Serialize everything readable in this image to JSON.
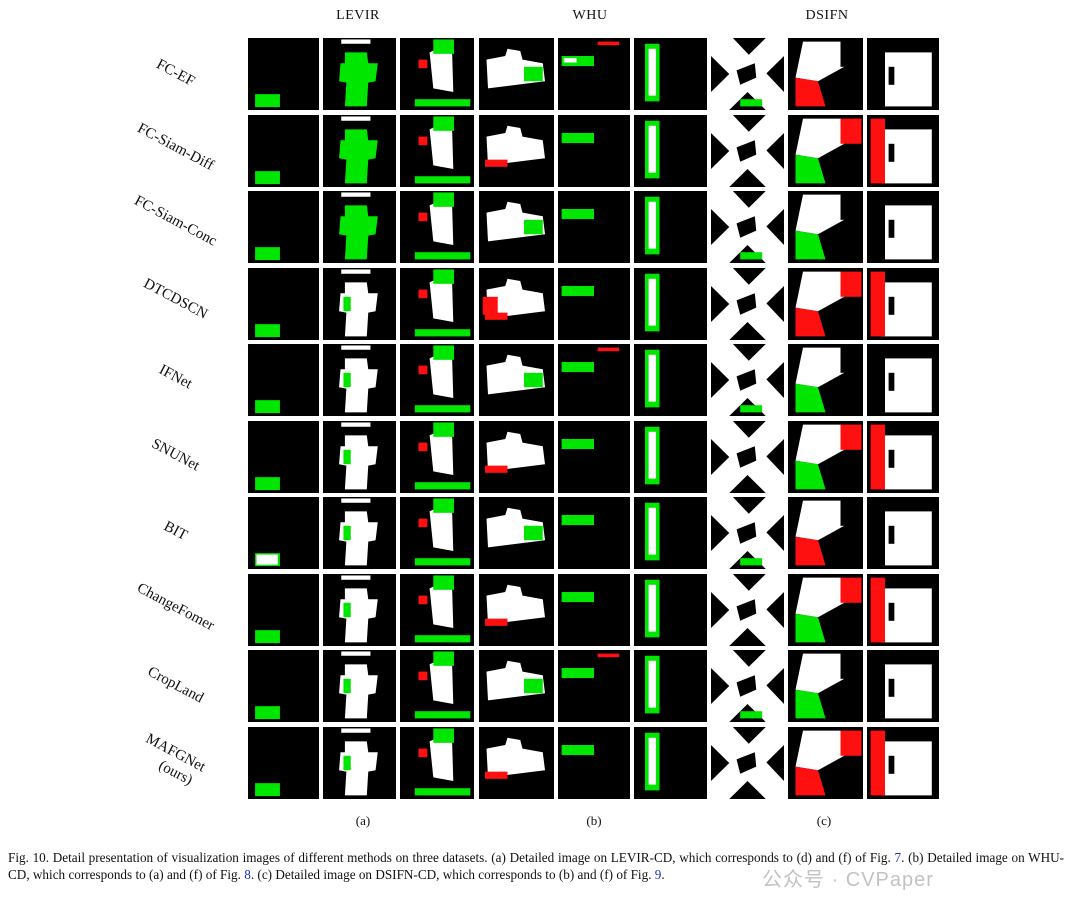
{
  "column_headers": [
    "LEVIR",
    "WHU",
    "DSIFN"
  ],
  "row_labels": [
    "FC-EF",
    "FC-Siam-Diff",
    "FC-Siam-Conc",
    "DTCDSCN",
    "IFNet",
    "SNUNet",
    "BIT",
    "ChangeFomer",
    "CropLand",
    "MAFGNet",
    "(ours)"
  ],
  "sub_captions": [
    "(a)",
    "(b)",
    "(c)"
  ],
  "caption": {
    "part1": "Fig. 10.   Detail presentation of visualization images of different methods on three datasets. (a) Detailed image on LEVIR-CD, which corresponds to (d) and (f) of Fig. ",
    "ref1": "7",
    "part2": ". (b) Detailed image on WHU-CD, which corresponds to (a) and (f) of Fig. ",
    "ref2": "8",
    "part3": ". (c) Detailed image on DSIFN-CD, which corresponds to (b) and (f) of Fig. ",
    "ref3": "9",
    "part4": "."
  },
  "watermark": "公众号 · CVPaper",
  "colors": {
    "background": "#000000",
    "building": "#ffffff",
    "false_negative": "#00e600",
    "false_positive": "#ff1010"
  }
}
